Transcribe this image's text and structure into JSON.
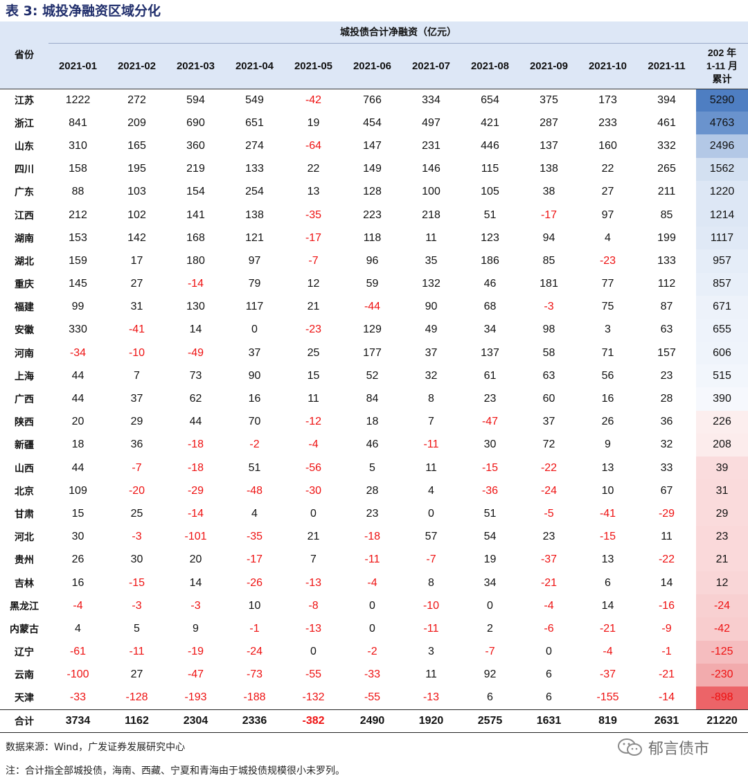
{
  "title": "表 3:  城投净融资区域分化",
  "table": {
    "province_header": "省份",
    "group_header": "城投债合计净融资（亿元）",
    "months": [
      "2021-01",
      "2021-02",
      "2021-03",
      "2021-04",
      "2021-05",
      "2021-06",
      "2021-07",
      "2021-08",
      "2021-09",
      "2021-10",
      "2021-11"
    ],
    "cum_header": [
      "202 年",
      "1-11 月",
      "累计"
    ],
    "rows": [
      {
        "province": "江苏",
        "values": [
          "1222",
          "272",
          "594",
          "549",
          "-42",
          "766",
          "334",
          "654",
          "375",
          "173",
          "394"
        ],
        "cumulative": "5290",
        "shade": "#4e7ec2"
      },
      {
        "province": "浙江",
        "values": [
          "841",
          "209",
          "690",
          "651",
          "19",
          "454",
          "497",
          "421",
          "287",
          "233",
          "461"
        ],
        "cumulative": "4763",
        "shade": "#6a93cd"
      },
      {
        "province": "山东",
        "values": [
          "310",
          "165",
          "360",
          "274",
          "-64",
          "147",
          "231",
          "446",
          "137",
          "160",
          "332"
        ],
        "cumulative": "2496",
        "shade": "#b3c8e6"
      },
      {
        "province": "四川",
        "values": [
          "158",
          "195",
          "219",
          "133",
          "22",
          "149",
          "146",
          "115",
          "138",
          "22",
          "265"
        ],
        "cumulative": "1562",
        "shade": "#d3e0f1"
      },
      {
        "province": "广东",
        "values": [
          "88",
          "103",
          "154",
          "254",
          "13",
          "128",
          "100",
          "105",
          "38",
          "27",
          "211"
        ],
        "cumulative": "1220",
        "shade": "#dde7f5"
      },
      {
        "province": "江西",
        "values": [
          "212",
          "102",
          "141",
          "138",
          "-35",
          "223",
          "218",
          "51",
          "-17",
          "97",
          "85"
        ],
        "cumulative": "1214",
        "shade": "#dde7f5"
      },
      {
        "province": "湖南",
        "values": [
          "153",
          "142",
          "168",
          "121",
          "-17",
          "118",
          "11",
          "123",
          "94",
          "4",
          "199"
        ],
        "cumulative": "1117",
        "shade": "#e0e9f6"
      },
      {
        "province": "湖北",
        "values": [
          "159",
          "17",
          "180",
          "97",
          "-7",
          "96",
          "35",
          "186",
          "85",
          "-23",
          "133"
        ],
        "cumulative": "957",
        "shade": "#e5edf8"
      },
      {
        "province": "重庆",
        "values": [
          "145",
          "27",
          "-14",
          "79",
          "12",
          "59",
          "132",
          "46",
          "181",
          "77",
          "112"
        ],
        "cumulative": "857",
        "shade": "#e8eff9"
      },
      {
        "province": "福建",
        "values": [
          "99",
          "31",
          "130",
          "117",
          "21",
          "-44",
          "90",
          "68",
          "-3",
          "75",
          "87"
        ],
        "cumulative": "671",
        "shade": "#edf2fa"
      },
      {
        "province": "安徽",
        "values": [
          "330",
          "-41",
          "14",
          "0",
          "-23",
          "129",
          "49",
          "34",
          "98",
          "3",
          "63"
        ],
        "cumulative": "655",
        "shade": "#eef3fb"
      },
      {
        "province": "河南",
        "values": [
          "-34",
          "-10",
          "-49",
          "37",
          "25",
          "177",
          "37",
          "137",
          "58",
          "71",
          "157"
        ],
        "cumulative": "606",
        "shade": "#eff4fb"
      },
      {
        "province": "上海",
        "values": [
          "44",
          "7",
          "73",
          "90",
          "15",
          "52",
          "32",
          "61",
          "63",
          "56",
          "23"
        ],
        "cumulative": "515",
        "shade": "#f2f6fc"
      },
      {
        "province": "广西",
        "values": [
          "44",
          "37",
          "62",
          "16",
          "11",
          "84",
          "8",
          "23",
          "60",
          "16",
          "28"
        ],
        "cumulative": "390",
        "shade": "#f6f8fd"
      },
      {
        "province": "陕西",
        "values": [
          "20",
          "29",
          "44",
          "70",
          "-12",
          "18",
          "7",
          "-47",
          "37",
          "26",
          "36"
        ],
        "cumulative": "226",
        "shade": "#fceeee"
      },
      {
        "province": "新疆",
        "values": [
          "18",
          "36",
          "-18",
          "-2",
          "-4",
          "46",
          "-11",
          "30",
          "72",
          "9",
          "32"
        ],
        "cumulative": "208",
        "shade": "#fcecec"
      },
      {
        "province": "山西",
        "values": [
          "44",
          "-7",
          "-18",
          "51",
          "-56",
          "5",
          "11",
          "-15",
          "-22",
          "13",
          "33"
        ],
        "cumulative": "39",
        "shade": "#fadcdd"
      },
      {
        "province": "北京",
        "values": [
          "109",
          "-20",
          "-29",
          "-48",
          "-30",
          "28",
          "4",
          "-36",
          "-24",
          "10",
          "67"
        ],
        "cumulative": "31",
        "shade": "#fadbdc"
      },
      {
        "province": "甘肃",
        "values": [
          "15",
          "25",
          "-14",
          "4",
          "0",
          "23",
          "0",
          "51",
          "-5",
          "-41",
          "-29"
        ],
        "cumulative": "29",
        "shade": "#fadbdc"
      },
      {
        "province": "河北",
        "values": [
          "30",
          "-3",
          "-101",
          "-35",
          "21",
          "-18",
          "57",
          "54",
          "23",
          "-15",
          "11"
        ],
        "cumulative": "23",
        "shade": "#fad9da"
      },
      {
        "province": "贵州",
        "values": [
          "26",
          "30",
          "20",
          "-17",
          "7",
          "-11",
          "-7",
          "19",
          "-37",
          "13",
          "-22"
        ],
        "cumulative": "21",
        "shade": "#fad9da"
      },
      {
        "province": "吉林",
        "values": [
          "16",
          "-15",
          "14",
          "-26",
          "-13",
          "-4",
          "8",
          "34",
          "-21",
          "6",
          "14"
        ],
        "cumulative": "12",
        "shade": "#f9d6d7"
      },
      {
        "province": "黑龙江",
        "values": [
          "-4",
          "-3",
          "-3",
          "10",
          "-8",
          "0",
          "-10",
          "0",
          "-4",
          "14",
          "-16"
        ],
        "cumulative": "-24",
        "shade": "#f8d0d1"
      },
      {
        "province": "内蒙古",
        "values": [
          "4",
          "5",
          "9",
          "-1",
          "-13",
          "0",
          "-11",
          "2",
          "-6",
          "-21",
          "-9"
        ],
        "cumulative": "-42",
        "shade": "#f8cdce"
      },
      {
        "province": "辽宁",
        "values": [
          "-61",
          "-11",
          "-19",
          "-24",
          "0",
          "-2",
          "3",
          "-7",
          "0",
          "-4",
          "-1"
        ],
        "cumulative": "-125",
        "shade": "#f5bdbf"
      },
      {
        "province": "云南",
        "values": [
          "-100",
          "27",
          "-47",
          "-73",
          "-55",
          "-33",
          "11",
          "92",
          "6",
          "-37",
          "-21"
        ],
        "cumulative": "-230",
        "shade": "#f2abad"
      },
      {
        "province": "天津",
        "values": [
          "-33",
          "-128",
          "-193",
          "-188",
          "-132",
          "-55",
          "-13",
          "6",
          "6",
          "-155",
          "-14"
        ],
        "cumulative": "-898",
        "shade": "#ec6468"
      }
    ],
    "total": {
      "label": "合计",
      "values": [
        "3734",
        "1162",
        "2304",
        "2336",
        "-382",
        "2490",
        "1920",
        "2575",
        "1631",
        "819",
        "2631"
      ],
      "cumulative": "21220"
    }
  },
  "notes": {
    "source": "数据来源：Wind，广发证券发展研究中心",
    "note": "注：合计指全部城投债，海南、西藏、宁夏和青海由于城投债规模很小未罗列。"
  },
  "watermark": {
    "text": "郁言债市",
    "icon": "wechat-icon"
  }
}
